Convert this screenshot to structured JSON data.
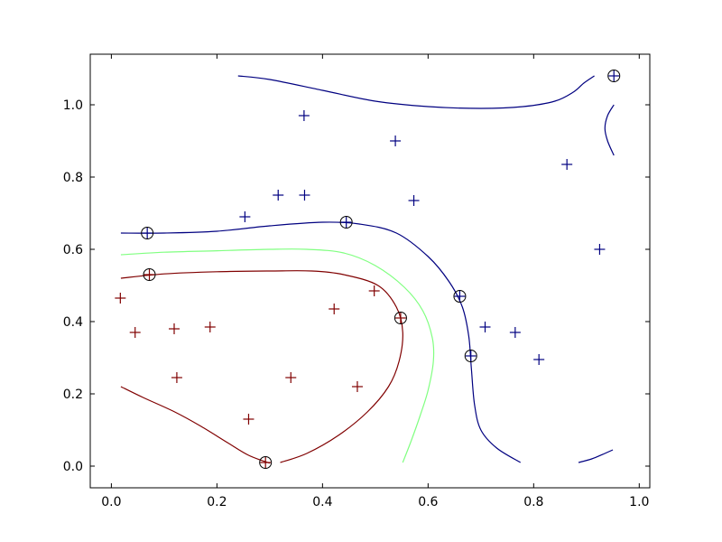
{
  "chart_data": {
    "type": "scatter",
    "title": "",
    "xlabel": "",
    "ylabel": "",
    "xlim": [
      -0.04,
      1.02
    ],
    "ylim": [
      -0.06,
      1.14
    ],
    "grid": false,
    "x_ticks": [
      0.0,
      0.2,
      0.4,
      0.6,
      0.8,
      1.0
    ],
    "x_tick_labels": [
      "0.0",
      "0.2",
      "0.4",
      "0.6",
      "0.8",
      "1.0"
    ],
    "y_ticks": [
      0.0,
      0.2,
      0.4,
      0.6,
      0.8,
      1.0
    ],
    "y_tick_labels": [
      "0.0",
      "0.2",
      "0.4",
      "0.6",
      "0.8",
      "1.0"
    ],
    "colors": {
      "class_0": "#800000",
      "class_1": "#000080",
      "boundary": "#80ff80",
      "support": "#000000"
    },
    "series": [
      {
        "marker": "+",
        "color": "#000080",
        "points": [
          [
            0.365,
            0.97
          ],
          [
            0.538,
            0.9
          ],
          [
            0.863,
            0.835
          ],
          [
            0.316,
            0.75
          ],
          [
            0.366,
            0.75
          ],
          [
            0.573,
            0.735
          ],
          [
            0.253,
            0.69
          ],
          [
            0.445,
            0.675
          ],
          [
            0.068,
            0.645
          ],
          [
            0.925,
            0.6
          ],
          [
            0.66,
            0.47
          ],
          [
            0.708,
            0.385
          ],
          [
            0.765,
            0.37
          ],
          [
            0.681,
            0.305
          ],
          [
            0.81,
            0.295
          ],
          [
            0.952,
            1.08
          ]
        ]
      },
      {
        "marker": "+",
        "color": "#800000",
        "points": [
          [
            0.072,
            0.53
          ],
          [
            0.498,
            0.485
          ],
          [
            0.017,
            0.465
          ],
          [
            0.422,
            0.435
          ],
          [
            0.548,
            0.41
          ],
          [
            0.045,
            0.37
          ],
          [
            0.119,
            0.38
          ],
          [
            0.187,
            0.385
          ],
          [
            0.124,
            0.245
          ],
          [
            0.34,
            0.245
          ],
          [
            0.466,
            0.22
          ],
          [
            0.26,
            0.13
          ],
          [
            0.292,
            0.01
          ]
        ]
      },
      {
        "marker": "circle",
        "color": "#000000",
        "points": [
          [
            0.952,
            1.08
          ],
          [
            0.068,
            0.645
          ],
          [
            0.445,
            0.675
          ],
          [
            0.072,
            0.53
          ],
          [
            0.66,
            0.47
          ],
          [
            0.548,
            0.41
          ],
          [
            0.681,
            0.305
          ],
          [
            0.292,
            0.01
          ]
        ]
      }
    ],
    "contours": [
      {
        "color": "#000080",
        "points": [
          [
            0.24,
            1.08
          ],
          [
            0.3,
            1.07
          ],
          [
            0.4,
            1.04
          ],
          [
            0.5,
            1.01
          ],
          [
            0.6,
            0.995
          ],
          [
            0.7,
            0.99
          ],
          [
            0.78,
            0.995
          ],
          [
            0.84,
            1.01
          ],
          [
            0.875,
            1.035
          ],
          [
            0.895,
            1.06
          ],
          [
            0.915,
            1.08
          ]
        ]
      },
      {
        "color": "#000080",
        "points": [
          [
            0.952,
            1.0
          ],
          [
            0.94,
            0.97
          ],
          [
            0.935,
            0.935
          ],
          [
            0.94,
            0.9
          ],
          [
            0.952,
            0.86
          ]
        ]
      },
      {
        "color": "#000080",
        "points": [
          [
            0.018,
            0.645
          ],
          [
            0.1,
            0.645
          ],
          [
            0.2,
            0.65
          ],
          [
            0.3,
            0.665
          ],
          [
            0.4,
            0.675
          ],
          [
            0.47,
            0.67
          ],
          [
            0.54,
            0.645
          ],
          [
            0.6,
            0.58
          ],
          [
            0.64,
            0.51
          ],
          [
            0.665,
            0.44
          ],
          [
            0.677,
            0.36
          ],
          [
            0.682,
            0.27
          ],
          [
            0.688,
            0.17
          ],
          [
            0.7,
            0.1
          ],
          [
            0.73,
            0.05
          ],
          [
            0.775,
            0.01
          ]
        ]
      },
      {
        "color": "#000080",
        "points": [
          [
            0.885,
            0.01
          ],
          [
            0.91,
            0.02
          ],
          [
            0.93,
            0.032
          ],
          [
            0.95,
            0.045
          ]
        ]
      },
      {
        "color": "#80ff80",
        "points": [
          [
            0.018,
            0.585
          ],
          [
            0.1,
            0.592
          ],
          [
            0.2,
            0.596
          ],
          [
            0.3,
            0.6
          ],
          [
            0.37,
            0.6
          ],
          [
            0.44,
            0.59
          ],
          [
            0.5,
            0.555
          ],
          [
            0.555,
            0.495
          ],
          [
            0.59,
            0.43
          ],
          [
            0.608,
            0.355
          ],
          [
            0.61,
            0.29
          ],
          [
            0.6,
            0.21
          ],
          [
            0.585,
            0.14
          ],
          [
            0.568,
            0.07
          ],
          [
            0.552,
            0.01
          ]
        ]
      },
      {
        "color": "#800000",
        "points": [
          [
            0.018,
            0.52
          ],
          [
            0.1,
            0.532
          ],
          [
            0.2,
            0.538
          ],
          [
            0.3,
            0.54
          ],
          [
            0.38,
            0.54
          ],
          [
            0.44,
            0.53
          ],
          [
            0.505,
            0.5
          ],
          [
            0.54,
            0.44
          ],
          [
            0.552,
            0.37
          ],
          [
            0.545,
            0.29
          ],
          [
            0.525,
            0.22
          ],
          [
            0.485,
            0.15
          ],
          [
            0.43,
            0.085
          ],
          [
            0.37,
            0.035
          ],
          [
            0.32,
            0.01
          ]
        ]
      },
      {
        "color": "#800000",
        "points": [
          [
            0.018,
            0.22
          ],
          [
            0.06,
            0.19
          ],
          [
            0.12,
            0.15
          ],
          [
            0.17,
            0.11
          ],
          [
            0.22,
            0.065
          ],
          [
            0.26,
            0.03
          ],
          [
            0.3,
            0.008
          ]
        ]
      }
    ]
  }
}
